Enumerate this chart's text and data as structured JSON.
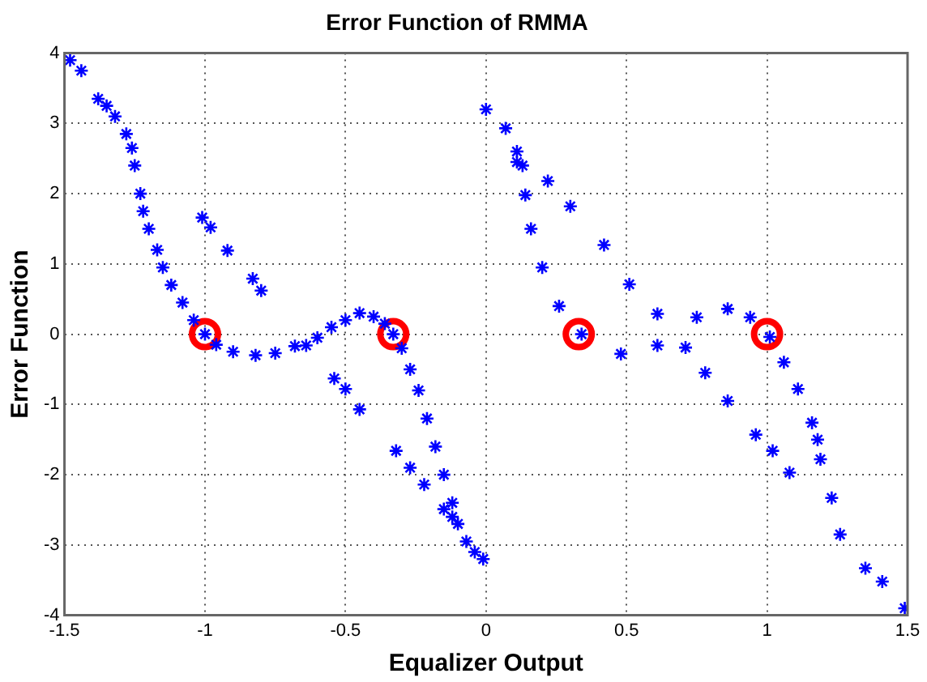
{
  "chart_data": {
    "type": "scatter",
    "title": "Error Function of RMMA",
    "xlabel": "Equalizer Output",
    "ylabel": "Error Function",
    "xlim": [
      -1.5,
      1.5
    ],
    "ylim": [
      -4,
      4
    ],
    "xticks": [
      -1.5,
      -1,
      -0.5,
      0,
      0.5,
      1,
      1.5
    ],
    "yticks": [
      -4,
      -3,
      -2,
      -1,
      0,
      1,
      2,
      3,
      4
    ],
    "grid": true,
    "legend": false,
    "series": [
      {
        "color": "#0000ff",
        "marker": "cross",
        "x": [
          -1.48,
          -1.44,
          -1.38,
          -1.35,
          -1.32,
          -1.28,
          -1.26,
          -1.25,
          -1.23,
          -1.22,
          -1.2,
          -1.17,
          -1.15,
          -1.12,
          -1.08,
          -1.04,
          -1.0,
          -0.96,
          -0.9,
          -0.82,
          -0.75,
          -0.68,
          -0.6,
          -0.55,
          -0.5,
          -0.45,
          -0.4,
          -0.36,
          -0.33,
          -0.3,
          -0.27,
          -0.24,
          -0.21,
          -0.18,
          -0.15,
          -0.12,
          -0.1,
          -0.07,
          -0.04,
          -0.01,
          -1.01,
          -0.98,
          -0.92,
          -0.83,
          -0.8,
          -0.64,
          -0.54,
          -0.5,
          -0.45,
          -0.32,
          -0.27,
          -0.22,
          -0.15,
          -0.12,
          0.0,
          0.07,
          0.11,
          0.14,
          0.16,
          0.2,
          0.26,
          0.34,
          0.48,
          0.61,
          0.75,
          0.86,
          0.94,
          1.01,
          1.06,
          1.11,
          1.16,
          1.18,
          1.19,
          1.23,
          1.26,
          1.35,
          1.41,
          1.49,
          0.11,
          0.13,
          0.22,
          0.3,
          0.42,
          0.51,
          0.61,
          0.71,
          0.78,
          0.86,
          0.96,
          1.02,
          1.08
        ],
        "values": [
          3.9,
          3.75,
          3.35,
          3.25,
          3.1,
          2.85,
          2.65,
          2.4,
          2.0,
          1.75,
          1.5,
          1.2,
          0.95,
          0.7,
          0.45,
          0.2,
          0.0,
          -0.15,
          -0.25,
          -0.3,
          -0.27,
          -0.17,
          -0.05,
          0.1,
          0.2,
          0.3,
          0.25,
          0.15,
          0.0,
          -0.2,
          -0.5,
          -0.8,
          -1.2,
          -1.6,
          -2.0,
          -2.4,
          -2.7,
          -2.95,
          -3.1,
          -3.2,
          1.66,
          1.52,
          1.19,
          0.79,
          0.62,
          -0.16,
          -0.63,
          -0.78,
          -1.07,
          -1.66,
          -1.9,
          -2.14,
          -2.49,
          -2.6,
          3.2,
          2.93,
          2.6,
          1.98,
          1.5,
          0.95,
          0.4,
          0.0,
          -0.28,
          -0.16,
          0.24,
          0.36,
          0.24,
          -0.04,
          -0.4,
          -0.78,
          -1.26,
          -1.5,
          -1.78,
          -2.33,
          -2.85,
          -3.33,
          -3.52,
          -3.9,
          2.45,
          2.4,
          2.18,
          1.82,
          1.27,
          0.71,
          0.29,
          -0.19,
          -0.55,
          -0.95,
          -1.43,
          -1.66,
          -1.97
        ]
      },
      {
        "color": "#ff0000",
        "marker": "circle",
        "x": [
          -1,
          -0.33,
          0.33,
          1
        ],
        "values": [
          0,
          0,
          0,
          0
        ]
      }
    ]
  }
}
